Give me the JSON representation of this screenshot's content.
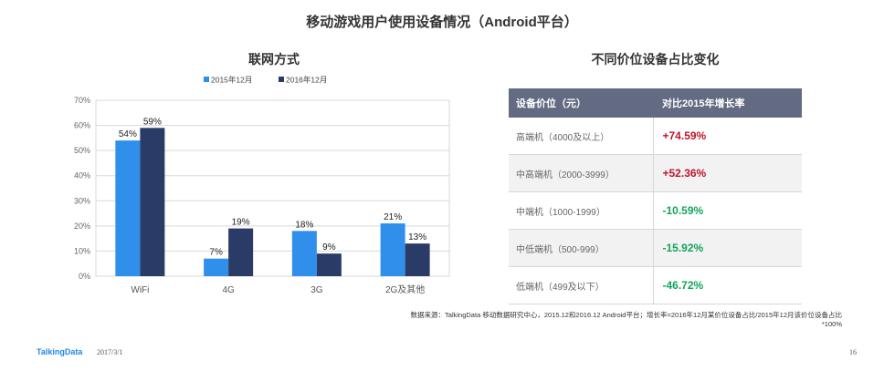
{
  "page_title": "移动游戏用户使用设备情况（Android平台）",
  "chart_data": {
    "type": "bar",
    "title": "联网方式",
    "categories": [
      "WiFi",
      "4G",
      "3G",
      "2G及其他"
    ],
    "series": [
      {
        "name": "2015年12月",
        "values": [
          54,
          7,
          18,
          21
        ],
        "labels": [
          "54%",
          "7%",
          "18%",
          "21%"
        ],
        "color": "#2f8fea"
      },
      {
        "name": "2016年12月",
        "values": [
          59,
          19,
          9,
          13
        ],
        "labels": [
          "59%",
          "19%",
          "9%",
          "13%"
        ],
        "color": "#2b3b67"
      }
    ],
    "ylim": [
      0,
      70
    ],
    "yticks": [
      0,
      10,
      20,
      30,
      40,
      50,
      60,
      70
    ],
    "ytick_labels": [
      "0%",
      "10%",
      "20%",
      "30%",
      "40%",
      "50%",
      "60%",
      "70%"
    ],
    "grid": true,
    "legend_position": "top"
  },
  "table": {
    "title": "不同价位设备占比变化",
    "headers": [
      "设备价位（元）",
      "对比2015年增长率"
    ],
    "rows": [
      {
        "label": "高端机（4000及以上）",
        "value": "+74.59%",
        "color": "#c0152a"
      },
      {
        "label": "中高端机（2000-3999）",
        "value": "+52.36%",
        "color": "#c0152a"
      },
      {
        "label": "中端机（1000-1999）",
        "value": "-10.59%",
        "color": "#12a65a"
      },
      {
        "label": "中低端机（500-999）",
        "value": "-15.92%",
        "color": "#12a65a"
      },
      {
        "label": "低端机（499及以下）",
        "value": "-46.72%",
        "color": "#12a65a"
      }
    ]
  },
  "footnote": {
    "line1": "数据来源：TalkingData 移动数据研究中心，2015.12和2016.12 Android平台；增长率=2016年12月某价位设备占比/2015年12月该价位设备占比",
    "line2": "*100%"
  },
  "footer": {
    "brand": "TalkingData",
    "date": "2017/3/1",
    "page": "16"
  }
}
